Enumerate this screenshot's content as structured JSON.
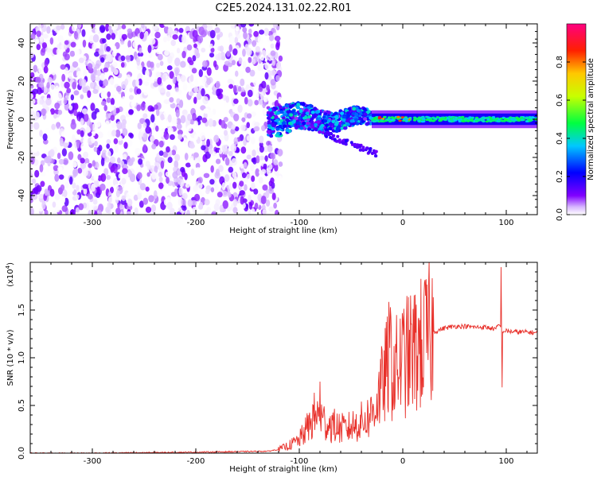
{
  "figure_title": "C2E5.2024.131.02.22.R01",
  "chart_data": [
    {
      "type": "heatmap",
      "name": "spectrogram",
      "xlabel": "Height of straight line (km)",
      "ylabel": "Frequency (Hz)",
      "xlim": [
        -360,
        130
      ],
      "ylim": [
        -50,
        50
      ],
      "x_ticks": [
        -300,
        -200,
        -100,
        0,
        100
      ],
      "x_tick_labels": [
        "-300",
        "-200",
        "-100",
        "0",
        "100"
      ],
      "y_ticks": [
        -40,
        -20,
        0,
        20,
        40
      ],
      "y_tick_labels": [
        "-40",
        "-20",
        "0",
        "20",
        "40"
      ],
      "colorbar": {
        "label": "Normalized spectral amplitude",
        "range": [
          0,
          1
        ],
        "ticks": [
          0.0,
          0.2,
          0.4,
          0.6,
          0.8
        ],
        "tick_labels": [
          "0.0",
          "0.2",
          "0.4",
          "0.6",
          "0.8"
        ],
        "colormap": [
          "#ffffff",
          "#8000ff",
          "#0000ff",
          "#00c8ff",
          "#00ff40",
          "#c8ff00",
          "#ffc800",
          "#ff2000",
          "#ff0080"
        ]
      },
      "regions": [
        {
          "x_range": [
            -360,
            -130
          ],
          "y_range": [
            -50,
            50
          ],
          "amplitude": 0.1,
          "description_key": "noise"
        },
        {
          "x_range": [
            -130,
            -30
          ],
          "y_range": [
            -12,
            10
          ],
          "amplitude": 0.35
        },
        {
          "x_range": [
            -30,
            130
          ],
          "y_range": [
            -3,
            3
          ],
          "amplitude": 0.45
        }
      ]
    },
    {
      "type": "line",
      "name": "snr",
      "xlabel": "Height of straight line (km)",
      "ylabel": "SNR (10 * v/v)",
      "y_multiplier_label": "(x10",
      "y_multiplier_exp": "4",
      "xlim": [
        -360,
        130
      ],
      "ylim": [
        0,
        2.0
      ],
      "x_ticks": [
        -300,
        -200,
        -100,
        0,
        100
      ],
      "x_tick_labels": [
        "-300",
        "-200",
        "-100",
        "0",
        "100"
      ],
      "y_ticks": [
        0.0,
        0.5,
        1.0,
        1.5
      ],
      "y_tick_labels": [
        "0.0",
        "0.5",
        "1.0",
        "1.5"
      ],
      "series": [
        {
          "name": "SNR",
          "color": "#e8302a",
          "x": [
            -360,
            -300,
            -200,
            -130,
            -120,
            -110,
            -100,
            -95,
            -90,
            -85,
            -80,
            -75,
            -70,
            -65,
            -60,
            -55,
            -50,
            -45,
            -40,
            -35,
            -30,
            -25,
            -20,
            -15,
            -12,
            -10,
            -5,
            0,
            5,
            10,
            15,
            20,
            25,
            30,
            40,
            50,
            60,
            70,
            80,
            85,
            90,
            93,
            95,
            97,
            100,
            110,
            120,
            130
          ],
          "y": [
            0.0,
            0.0,
            0.01,
            0.02,
            0.04,
            0.08,
            0.14,
            0.22,
            0.3,
            0.4,
            0.38,
            0.32,
            0.3,
            0.28,
            0.26,
            0.25,
            0.28,
            0.3,
            0.33,
            0.36,
            0.42,
            0.55,
            0.7,
            0.9,
            1.05,
            0.85,
            0.9,
            0.98,
            1.02,
            1.06,
            1.1,
            1.16,
            1.22,
            1.27,
            1.31,
            1.33,
            1.33,
            1.32,
            1.32,
            1.31,
            1.3,
            1.35,
            1.3,
            1.28,
            1.28,
            1.27,
            1.27,
            1.26
          ],
          "spikes": [
            {
              "x": -80,
              "y": 0.75
            },
            {
              "x": -12,
              "y": 1.53
            },
            {
              "x": 95,
              "y": 1.95
            },
            {
              "x": 96,
              "y": 0.69
            }
          ]
        }
      ]
    }
  ]
}
